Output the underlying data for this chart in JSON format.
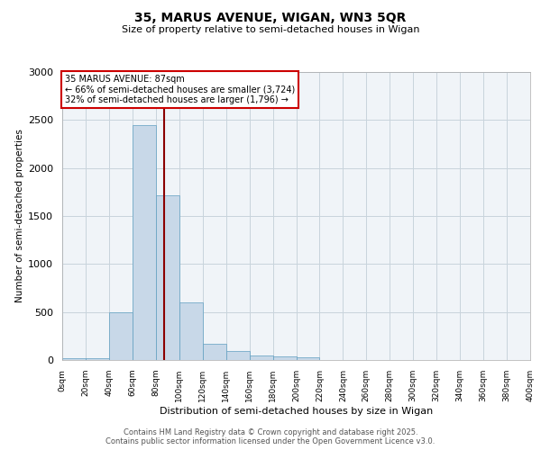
{
  "title_line1": "35, MARUS AVENUE, WIGAN, WN3 5QR",
  "title_line2": "Size of property relative to semi-detached houses in Wigan",
  "xlabel": "Distribution of semi-detached houses by size in Wigan",
  "ylabel": "Number of semi-detached properties",
  "bin_edges": [
    0,
    20,
    40,
    60,
    80,
    100,
    120,
    140,
    160,
    180,
    200,
    220,
    240,
    260,
    280,
    300,
    320,
    340,
    360,
    380,
    400
  ],
  "bar_heights": [
    20,
    20,
    500,
    2450,
    1720,
    600,
    165,
    90,
    50,
    35,
    25,
    0,
    0,
    0,
    0,
    0,
    0,
    0,
    0,
    0
  ],
  "bar_color": "#c8d8e8",
  "bar_edgecolor": "#5f9ec0",
  "property_size": 87,
  "vline_color": "#8b0000",
  "annotation_text": "35 MARUS AVENUE: 87sqm\n← 66% of semi-detached houses are smaller (3,724)\n32% of semi-detached houses are larger (1,796) →",
  "annotation_box_color": "white",
  "annotation_box_edgecolor": "#cc0000",
  "ylim": [
    0,
    3000
  ],
  "xlim": [
    0,
    400
  ],
  "yticks": [
    0,
    500,
    1000,
    1500,
    2000,
    2500,
    3000
  ],
  "xtick_step": 20,
  "footer_line1": "Contains HM Land Registry data © Crown copyright and database right 2025.",
  "footer_line2": "Contains public sector information licensed under the Open Government Licence v3.0.",
  "background_color": "#f0f4f8",
  "grid_color": "#c8d4dc"
}
